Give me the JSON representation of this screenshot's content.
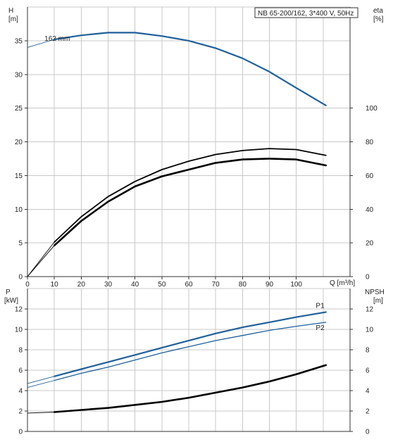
{
  "chart_data": [
    {
      "type": "line",
      "title": "NB 65-200/162, 3*400 V, 50Hz",
      "xlabel": "Q [m³/h]",
      "ylabel": "H\n[m]",
      "y2label": "eta\n[%]",
      "xlim": [
        0,
        120
      ],
      "ylim": [
        0,
        40
      ],
      "y2lim": [
        0,
        160
      ],
      "x_ticks": [
        0,
        10,
        20,
        30,
        40,
        50,
        60,
        70,
        80,
        90,
        100
      ],
      "y_ticks": [
        0,
        5,
        10,
        15,
        20,
        25,
        30,
        35
      ],
      "y2_ticks": [
        0,
        20,
        40,
        60,
        80,
        100
      ],
      "grid": true,
      "series": [
        {
          "name": "162 mm",
          "axis": "left",
          "color": "#1f5f9a",
          "x": [
            0,
            10,
            20,
            30,
            40,
            50,
            60,
            70,
            80,
            90,
            100,
            111
          ],
          "y": [
            34.0,
            35.2,
            35.8,
            36.2,
            36.2,
            35.7,
            35.0,
            33.9,
            32.4,
            30.4,
            28.0,
            25.4
          ]
        },
        {
          "name": "",
          "axis": "right",
          "color": "#000000",
          "x": [
            0,
            10,
            20,
            30,
            40,
            50,
            60,
            70,
            80,
            90,
            100,
            111
          ],
          "y": [
            0,
            20.5,
            35.5,
            47.5,
            56.5,
            63.5,
            68.5,
            72.5,
            74.8,
            76.0,
            75.4,
            72.0
          ]
        },
        {
          "name": "",
          "axis": "right",
          "color": "#000000",
          "x": [
            0,
            10,
            20,
            30,
            40,
            50,
            60,
            70,
            80,
            90,
            100,
            111
          ],
          "y": [
            0,
            18.5,
            33.0,
            44.5,
            53.5,
            59.5,
            63.5,
            67.5,
            69.5,
            70.0,
            69.5,
            66.0
          ]
        }
      ]
    },
    {
      "type": "line",
      "title": "",
      "xlabel": "",
      "ylabel": "P\n[kW]",
      "y2label": "NPSH\n[m]",
      "xlim": [
        0,
        120
      ],
      "ylim": [
        0,
        14
      ],
      "y2lim": [
        0,
        14
      ],
      "y_ticks": [
        0,
        2,
        4,
        6,
        8,
        10,
        12
      ],
      "y2_ticks": [
        0,
        2,
        4,
        6,
        8,
        10,
        12
      ],
      "grid": true,
      "series": [
        {
          "name": "P1",
          "axis": "left",
          "color": "#1f5f9a",
          "x": [
            0,
            10,
            20,
            30,
            40,
            50,
            60,
            70,
            80,
            90,
            100,
            111
          ],
          "y": [
            4.7,
            5.4,
            6.1,
            6.8,
            7.5,
            8.2,
            8.9,
            9.6,
            10.2,
            10.7,
            11.2,
            11.7
          ]
        },
        {
          "name": "P2",
          "axis": "left",
          "color": "#1f5f9a",
          "x": [
            0,
            10,
            20,
            30,
            40,
            50,
            60,
            70,
            80,
            90,
            100,
            111
          ],
          "y": [
            4.3,
            5.0,
            5.7,
            6.3,
            7.0,
            7.7,
            8.3,
            8.9,
            9.4,
            9.9,
            10.3,
            10.7
          ]
        },
        {
          "name": "",
          "axis": "right",
          "color": "#000000",
          "x": [
            0,
            10,
            20,
            30,
            40,
            50,
            60,
            70,
            80,
            90,
            100,
            111
          ],
          "y": [
            1.8,
            1.9,
            2.1,
            2.3,
            2.6,
            2.9,
            3.3,
            3.8,
            4.3,
            4.9,
            5.6,
            6.5
          ]
        }
      ]
    }
  ]
}
